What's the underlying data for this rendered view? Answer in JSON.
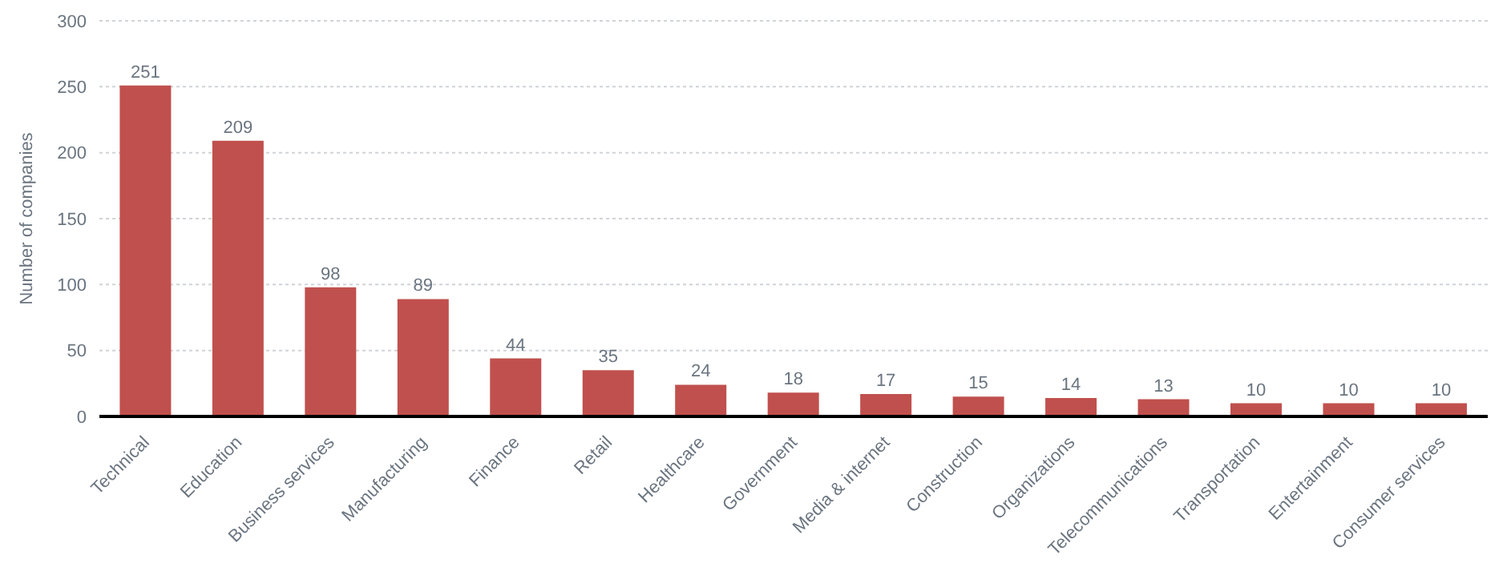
{
  "chart_data": {
    "type": "bar",
    "ylabel": "Number of companies",
    "categories": [
      "Technical",
      "Education",
      "Business services",
      "Manufacturing",
      "Finance",
      "Retail",
      "Healthcare",
      "Government",
      "Media & internet",
      "Construction",
      "Organizations",
      "Telecommunications",
      "Transportation",
      "Entertainment",
      "Consumer services"
    ],
    "values": [
      251,
      209,
      98,
      89,
      44,
      35,
      24,
      18,
      17,
      15,
      14,
      13,
      10,
      10,
      10
    ],
    "color": "#c0504d",
    "ylim": [
      0,
      300
    ],
    "yticks": [
      0,
      50,
      100,
      150,
      200,
      250,
      300
    ],
    "grid": "y",
    "data_labels": true
  }
}
